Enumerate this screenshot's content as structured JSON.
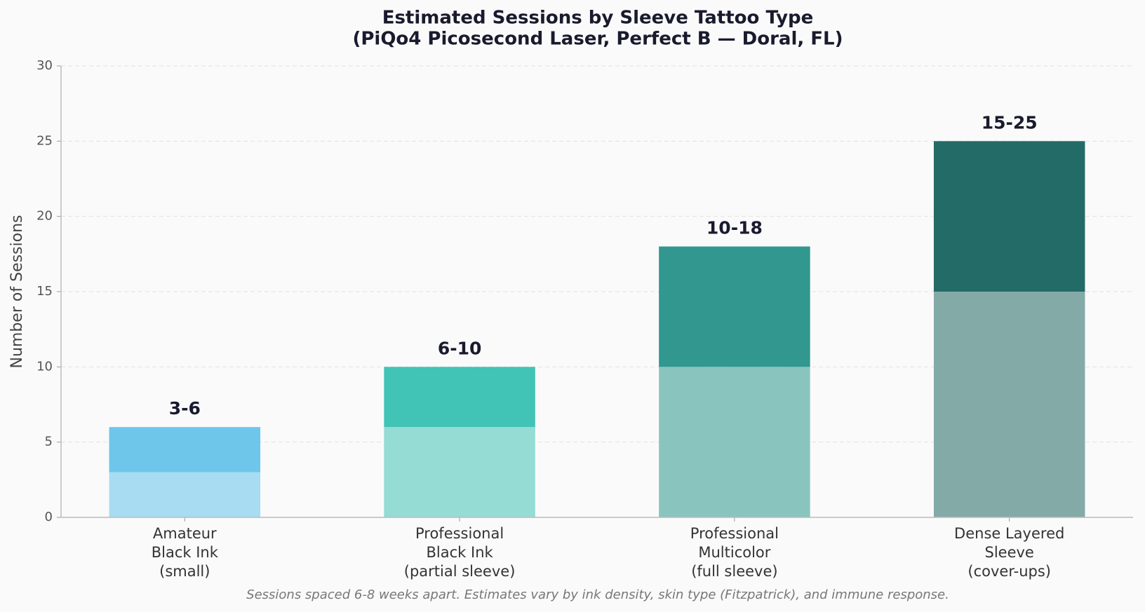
{
  "chart_data": {
    "type": "stacked_bar",
    "title": "Estimated Sessions by Sleeve Tattoo Type",
    "subtitle": "(PiQo4 Picosecond Laser, Perfect B — Doral, FL)",
    "y_label": "Number of Sessions",
    "footnote": "Sessions spaced 6-8 weeks apart. Estimates vary by ink density, skin type (Fitzpatrick), and immune response.",
    "categories": [
      "Amateur\nBlack Ink\n(small)",
      "Professional\nBlack Ink\n(partial sleeve)",
      "Professional\nMulticolor\n(full sleeve)",
      "Dense Layered\nSleeve\n(cover-ups)"
    ],
    "series": [
      {
        "values": [
          3,
          6,
          10,
          15
        ],
        "colors": [
          "#a8dcf2",
          "#95dcd5",
          "#8ac4bf",
          "#84aaa8"
        ]
      },
      {
        "values": [
          3,
          4,
          8,
          10
        ],
        "colors": [
          "#6ec6ea",
          "#41c3b6",
          "#31978f",
          "#236b66"
        ]
      }
    ],
    "bar_labels": [
      "3-6",
      "6-10",
      "10-18",
      "15-25"
    ],
    "ylim": [
      0,
      30
    ],
    "yticks": [
      0,
      5,
      10,
      15,
      20,
      25,
      30
    ],
    "grid": true
  }
}
